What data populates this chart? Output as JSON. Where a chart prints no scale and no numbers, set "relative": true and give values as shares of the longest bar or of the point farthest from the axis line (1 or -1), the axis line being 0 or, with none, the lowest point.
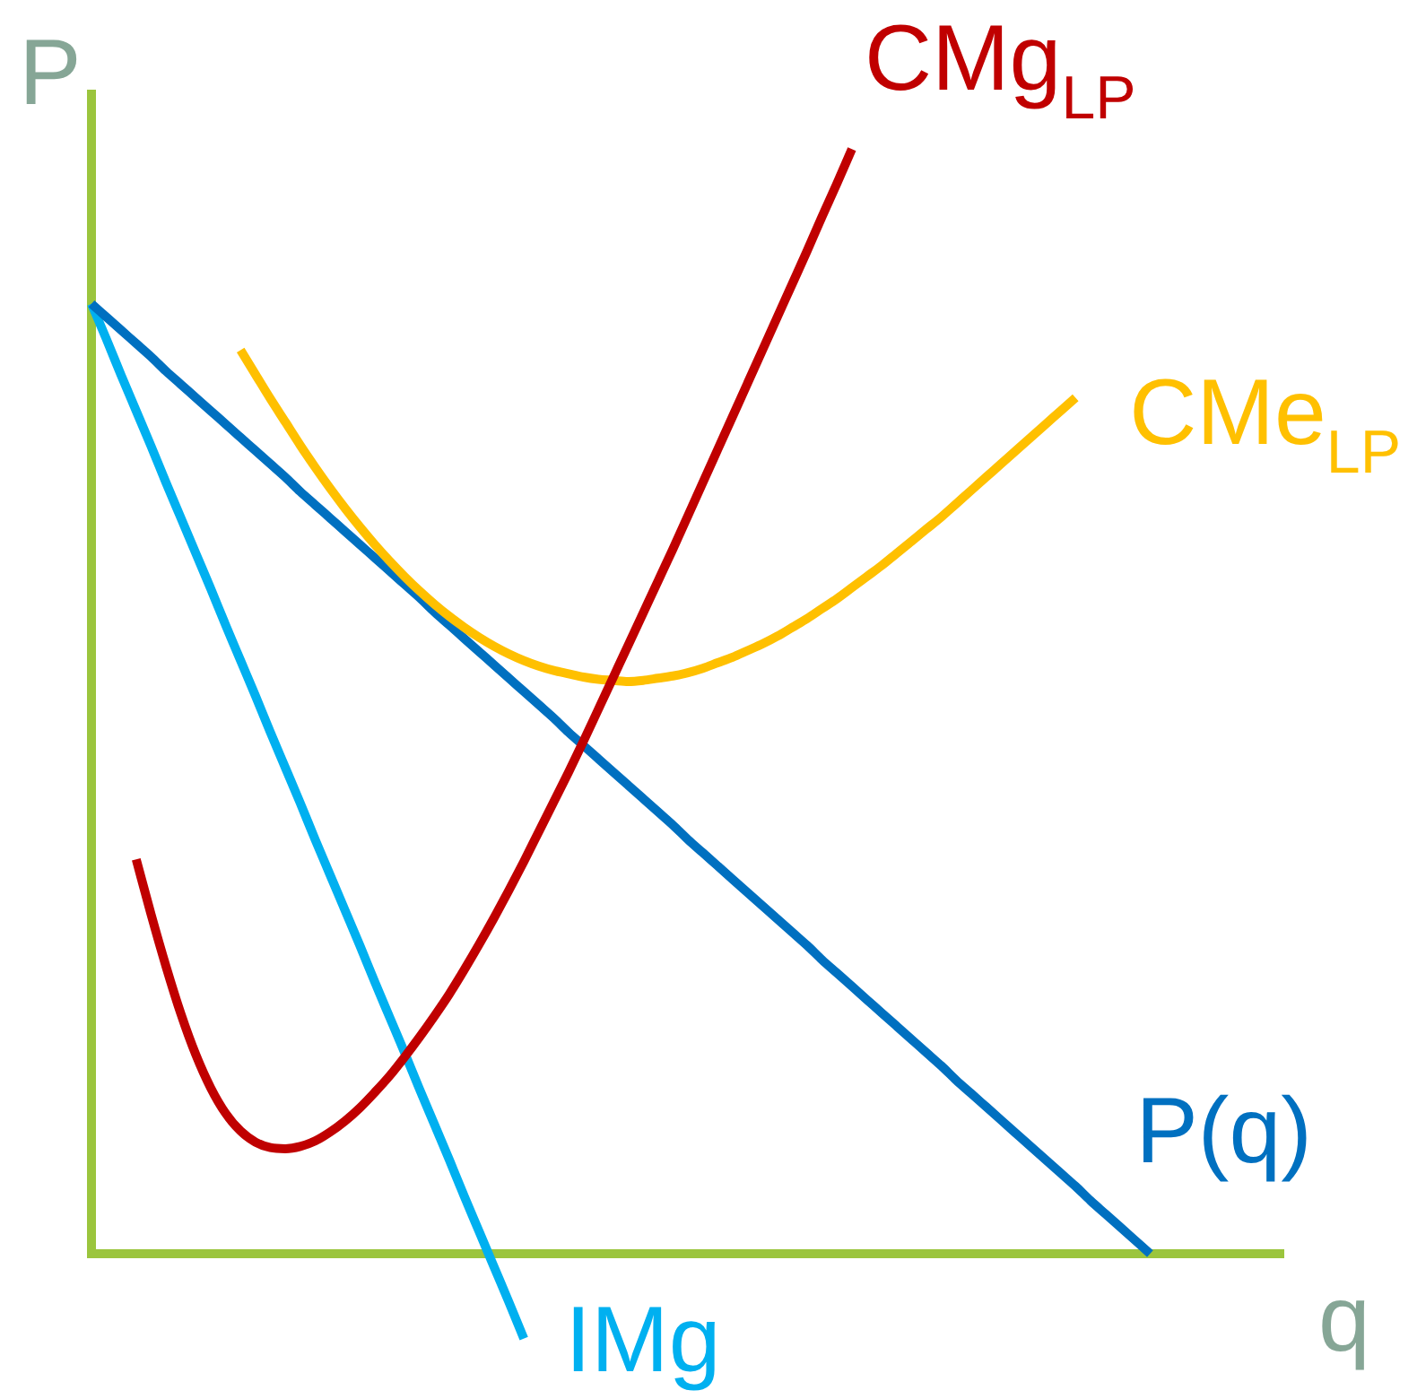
{
  "chart_data": {
    "type": "line",
    "relative": true,
    "xlabel": "q",
    "ylabel": "P",
    "categories": [
      null,
      null,
      null,
      null,
      null,
      null,
      null,
      null,
      null,
      null,
      null,
      null,
      null,
      null,
      null,
      null,
      null,
      null,
      null,
      null,
      null,
      null,
      null,
      null,
      null,
      null,
      null,
      null,
      null,
      null,
      null,
      null,
      null,
      null,
      null,
      null,
      null,
      null,
      null,
      null,
      null,
      null,
      null,
      null,
      null,
      null,
      null,
      null,
      null,
      null,
      null,
      null,
      null,
      null,
      null,
      null,
      null,
      null,
      null,
      null,
      null,
      null,
      null,
      null,
      null,
      null,
      null,
      null,
      null,
      null,
      null,
      null,
      null,
      null,
      null,
      null,
      null,
      null,
      null,
      null,
      null
    ],
    "ref_lines": [
      {
        "axis": "y",
        "value": 0,
        "color": "#9bc53d"
      }
    ],
    "series": [
      {
        "name": "CMg$_{LP}$",
        "color": "#c00000",
        "values": [
          null,
          null,
          null,
          0.357,
          0.307,
          0.26,
          0.217,
          0.18,
          0.15,
          0.127,
          0.111,
          0.101,
          0.096,
          0.095,
          0.097,
          0.102,
          0.11,
          0.12,
          0.132,
          0.146,
          0.161,
          0.178,
          0.196,
          0.215,
          0.235,
          0.257,
          0.28,
          0.304,
          0.329,
          0.355,
          0.382,
          0.409,
          0.436,
          0.464,
          0.493,
          0.522,
          0.551,
          0.58,
          0.609,
          0.638,
          0.668,
          0.698,
          0.728,
          0.758,
          0.788,
          0.818,
          0.848,
          0.878,
          0.908,
          0.939,
          0.969,
          1,
          null,
          null,
          null,
          null,
          null,
          null,
          null,
          null,
          null,
          null,
          null,
          null,
          null,
          null,
          null,
          null,
          null,
          null,
          null,
          null,
          null,
          null,
          null,
          null,
          null,
          null,
          null,
          null,
          null
        ]
      },
      {
        "name": "CMe$_{LP}$",
        "color": "#ffc000",
        "values": [
          null,
          null,
          null,
          null,
          null,
          null,
          null,
          null,
          null,
          null,
          0.818,
          0.796,
          0.774,
          0.753,
          0.732,
          0.712,
          0.693,
          0.675,
          0.658,
          0.642,
          0.627,
          0.613,
          0.6,
          0.588,
          0.577,
          0.567,
          0.558,
          0.55,
          0.543,
          0.537,
          0.532,
          0.528,
          0.525,
          0.522,
          0.52,
          0.519,
          0.518,
          0.519,
          0.521,
          0.523,
          0.526,
          0.53,
          0.535,
          0.54,
          0.546,
          0.552,
          0.559,
          0.567,
          0.575,
          0.584,
          0.593,
          0.603,
          0.613,
          0.623,
          0.634,
          0.645,
          0.656,
          0.667,
          0.679,
          0.691,
          0.703,
          0.715,
          0.727,
          0.739,
          0.751,
          0.763,
          0.775,
          null,
          null,
          null,
          null,
          null,
          null,
          null,
          null,
          null,
          null,
          null,
          null,
          null,
          null
        ]
      },
      {
        "name": "P(q)",
        "color": "#0070c0",
        "values": [
          0.86,
          0.848,
          0.836,
          0.824,
          0.812,
          0.799,
          0.787,
          0.775,
          0.763,
          0.751,
          0.739,
          0.727,
          0.715,
          0.703,
          0.69,
          0.678,
          0.666,
          0.654,
          0.642,
          0.63,
          0.618,
          0.606,
          0.594,
          0.581,
          0.569,
          0.557,
          0.545,
          0.533,
          0.521,
          0.509,
          0.497,
          0.485,
          0.472,
          0.46,
          0.448,
          0.436,
          0.424,
          0.412,
          0.4,
          0.388,
          0.375,
          0.363,
          0.351,
          0.339,
          0.327,
          0.315,
          0.303,
          0.291,
          0.279,
          0.266,
          0.254,
          0.242,
          0.23,
          0.218,
          0.206,
          0.194,
          0.182,
          0.17,
          0.157,
          0.145,
          0.133,
          0.121,
          0.109,
          0.097,
          0.085,
          0.073,
          0.061,
          0.048,
          0.036,
          0.024,
          0.012,
          0,
          null,
          null,
          null,
          null,
          null,
          null,
          null,
          null,
          null
        ]
      },
      {
        "name": "IMg",
        "color": "#00b0f0",
        "values": [
          0.86,
          0.828,
          0.795,
          0.763,
          0.731,
          0.698,
          0.666,
          0.634,
          0.602,
          0.569,
          0.537,
          0.505,
          0.472,
          0.44,
          0.408,
          0.375,
          0.343,
          0.311,
          0.279,
          0.246,
          0.214,
          0.182,
          0.149,
          0.117,
          0.085,
          0.052,
          0.02,
          -0.012,
          -0.044,
          -0.077,
          null,
          null,
          null,
          null,
          null,
          null,
          null,
          null,
          null,
          null,
          null,
          null,
          null,
          null,
          null,
          null,
          null,
          null,
          null,
          null,
          null,
          null,
          null,
          null,
          null,
          null,
          null,
          null,
          null,
          null,
          null,
          null,
          null,
          null,
          null,
          null,
          null,
          null,
          null,
          null,
          null,
          null,
          null,
          null,
          null,
          null,
          null,
          null,
          null,
          null,
          null
        ]
      }
    ]
  }
}
